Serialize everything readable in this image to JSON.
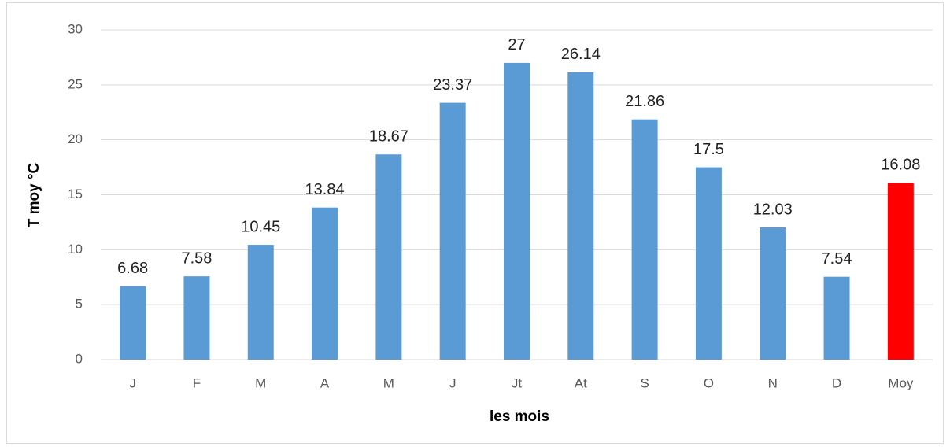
{
  "chart_data": {
    "type": "bar",
    "x_label": "les mois",
    "y_label": "T moy °C",
    "categories": [
      "J",
      "F",
      "M",
      "A",
      "M",
      "J",
      "Jt",
      "At",
      "S",
      "O",
      "N",
      "D",
      "Moy"
    ],
    "values": [
      6.68,
      7.58,
      10.45,
      13.84,
      18.67,
      23.37,
      27,
      26.14,
      21.86,
      17.5,
      12.03,
      7.54,
      16.08
    ],
    "colors": [
      "#5b9bd5",
      "#5b9bd5",
      "#5b9bd5",
      "#5b9bd5",
      "#5b9bd5",
      "#5b9bd5",
      "#5b9bd5",
      "#5b9bd5",
      "#5b9bd5",
      "#5b9bd5",
      "#5b9bd5",
      "#5b9bd5",
      "#ff0000"
    ],
    "ylim": [
      0,
      30
    ],
    "yticks": [
      0,
      5,
      10,
      15,
      20,
      25,
      30
    ],
    "grid": true
  }
}
